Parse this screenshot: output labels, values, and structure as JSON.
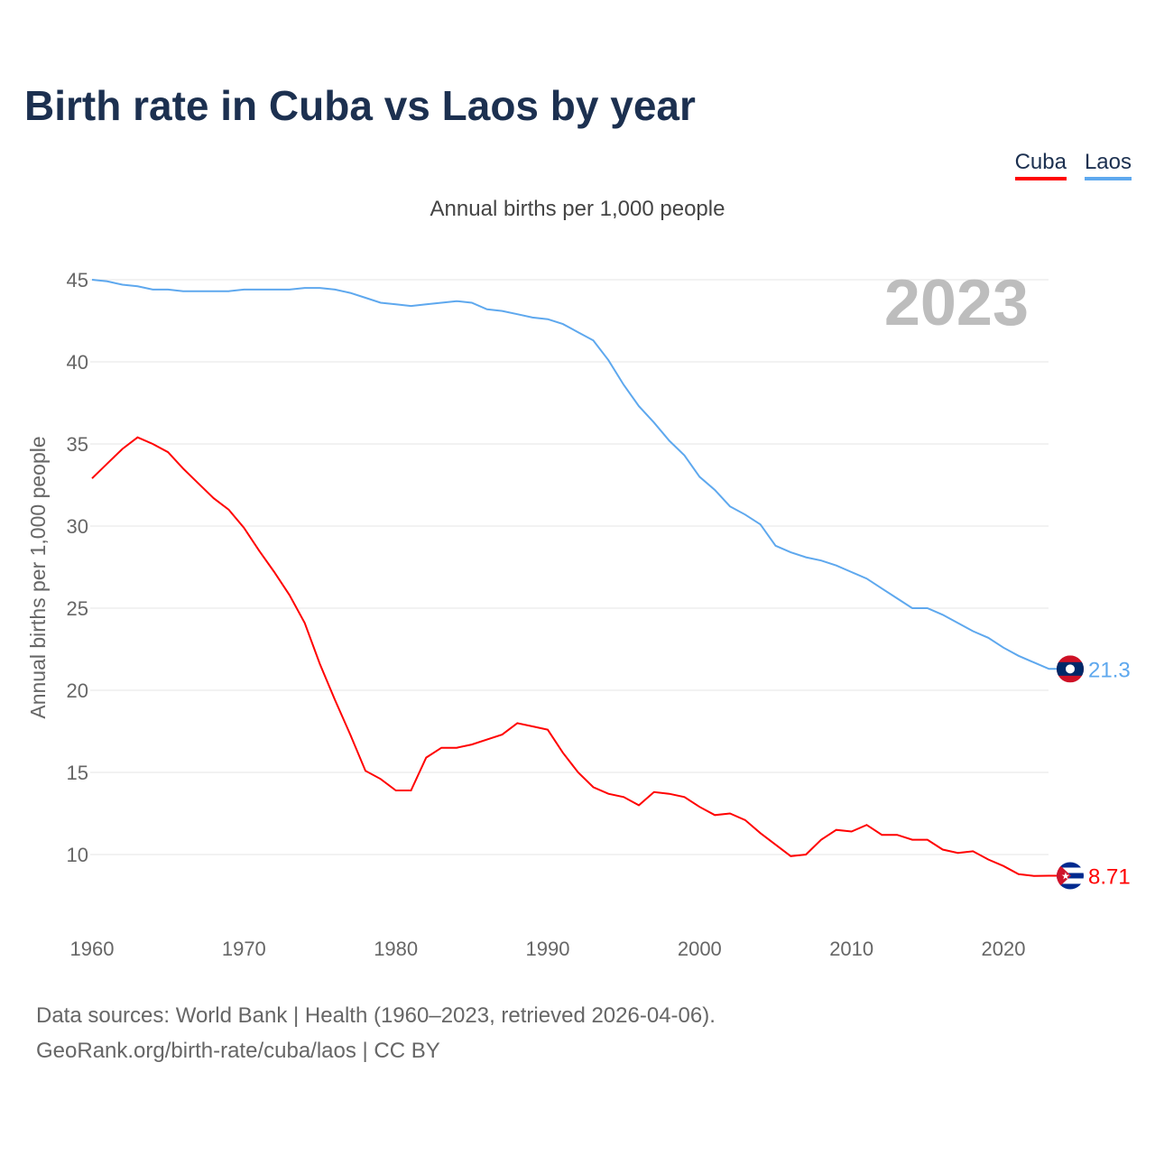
{
  "title": "Birth rate in Cuba vs Laos by year",
  "legend": [
    {
      "label": "Cuba",
      "color": "#ff0000"
    },
    {
      "label": "Laos",
      "color": "#5ea8ee"
    }
  ],
  "footer": {
    "line1": "Data sources: World Bank | Health (1960–2023, retrieved 2026-04-06).",
    "line2": "GeoRank.org/birth-rate/cuba/laos | CC BY"
  },
  "chart_data": {
    "type": "line",
    "title": "Birth rate in Cuba vs Laos by year",
    "subtitle": "Annual births per 1,000 people",
    "ylabel": "Annual births per 1,000 people",
    "xlabel": "",
    "year_watermark": "2023",
    "xlim": [
      1960,
      2023
    ],
    "ylim": [
      5,
      47
    ],
    "xticks": [
      1960,
      1970,
      1980,
      1990,
      2000,
      2010,
      2020
    ],
    "yticks": [
      10,
      15,
      20,
      25,
      30,
      35,
      40,
      45
    ],
    "grid": true,
    "legend_position": "top-right",
    "x_start": 1960,
    "series": [
      {
        "name": "Cuba",
        "color": "#ff0000",
        "end_label": "8.71",
        "flag": "cuba-flag",
        "values": [
          32.9,
          33.8,
          34.7,
          35.4,
          35.0,
          34.5,
          33.5,
          32.6,
          31.7,
          31.0,
          29.9,
          28.5,
          27.2,
          25.8,
          24.1,
          21.6,
          19.4,
          17.3,
          15.1,
          14.6,
          13.9,
          13.9,
          15.9,
          16.5,
          16.5,
          16.7,
          17.0,
          17.3,
          18.0,
          17.8,
          17.6,
          16.2,
          15.0,
          14.1,
          13.7,
          13.5,
          13.0,
          13.8,
          13.7,
          13.5,
          12.9,
          12.4,
          12.5,
          12.1,
          11.3,
          10.6,
          9.9,
          10.0,
          10.9,
          11.5,
          11.4,
          11.8,
          11.2,
          11.2,
          10.9,
          10.9,
          10.3,
          10.1,
          10.2,
          9.7,
          9.3,
          8.8,
          8.7,
          8.71
        ]
      },
      {
        "name": "Laos",
        "color": "#5ea8ee",
        "end_label": "21.3",
        "flag": "laos-flag",
        "values": [
          45.0,
          44.9,
          44.7,
          44.6,
          44.4,
          44.4,
          44.3,
          44.3,
          44.3,
          44.3,
          44.4,
          44.4,
          44.4,
          44.4,
          44.5,
          44.5,
          44.4,
          44.2,
          43.9,
          43.6,
          43.5,
          43.4,
          43.5,
          43.6,
          43.7,
          43.6,
          43.2,
          43.1,
          42.9,
          42.7,
          42.6,
          42.3,
          41.8,
          41.3,
          40.1,
          38.6,
          37.3,
          36.3,
          35.2,
          34.3,
          33.0,
          32.2,
          31.2,
          30.7,
          30.1,
          28.8,
          28.4,
          28.1,
          27.9,
          27.6,
          27.2,
          26.8,
          26.2,
          25.6,
          25.0,
          25.0,
          24.6,
          24.1,
          23.6,
          23.2,
          22.6,
          22.1,
          21.7,
          21.3
        ]
      }
    ]
  }
}
